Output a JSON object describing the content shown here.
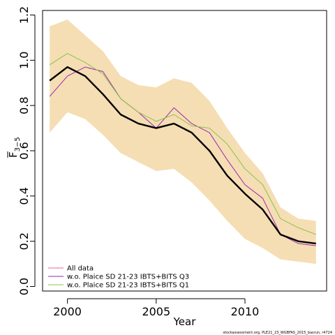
{
  "chart_data": {
    "type": "line",
    "xlabel": "Year",
    "ylabel_main": "F",
    "ylabel_sub": "3−5",
    "xlim": [
      1998.6,
      2014.6
    ],
    "ylim": [
      -0.02,
      1.22
    ],
    "xticks": [
      2000,
      2005,
      2010
    ],
    "xtick_labels": [
      "2000",
      "2005",
      "2010"
    ],
    "yticks": [
      0.0,
      0.2,
      0.4,
      0.6,
      0.8,
      1.0,
      1.2
    ],
    "ytick_labels": [
      "0.0",
      "0.2",
      "0.4",
      "0.6",
      "0.8",
      "1.0",
      "1.2"
    ],
    "x": [
      1999,
      2000,
      2001,
      2002,
      2003,
      2004,
      2005,
      2006,
      2007,
      2008,
      2009,
      2010,
      2011,
      2012,
      2013,
      2014
    ],
    "band": {
      "color": "#f5deb3",
      "upper": [
        1.15,
        1.18,
        1.11,
        1.04,
        0.93,
        0.89,
        0.88,
        0.92,
        0.9,
        0.82,
        0.7,
        0.59,
        0.5,
        0.35,
        0.3,
        0.29
      ],
      "lower": [
        0.68,
        0.77,
        0.74,
        0.67,
        0.59,
        0.55,
        0.51,
        0.52,
        0.46,
        0.38,
        0.29,
        0.21,
        0.17,
        0.12,
        0.11,
        0.1
      ]
    },
    "series": [
      {
        "name": "All data",
        "color": "#000000",
        "legend_color": "#f06292",
        "width": 2.4,
        "values": [
          0.91,
          0.97,
          0.93,
          0.85,
          0.76,
          0.72,
          0.7,
          0.72,
          0.68,
          0.6,
          0.49,
          0.41,
          0.34,
          0.23,
          0.2,
          0.19
        ]
      },
      {
        "name": "w.o. Plaice SD 21-23 IBTS+BITS Q3",
        "color": "#9c27b0",
        "legend_color": "#9c27b0",
        "width": 1,
        "values": [
          0.84,
          0.93,
          0.97,
          0.95,
          0.83,
          0.77,
          0.7,
          0.79,
          0.72,
          0.68,
          0.56,
          0.45,
          0.39,
          0.23,
          0.19,
          0.18
        ]
      },
      {
        "name": "w.o. Plaice SD 21-23 IBTS+BITS Q1",
        "color": "#8bc34a",
        "legend_color": "#8bc34a",
        "width": 1,
        "values": [
          0.98,
          1.03,
          0.99,
          0.94,
          0.83,
          0.77,
          0.73,
          0.76,
          0.71,
          0.7,
          0.63,
          0.52,
          0.45,
          0.3,
          0.26,
          0.23
        ]
      }
    ],
    "legend_position": "bottom-left",
    "footnote": "stockassessment.org, PLE21_23_WGBFAS_2015_basrun, r4724"
  }
}
